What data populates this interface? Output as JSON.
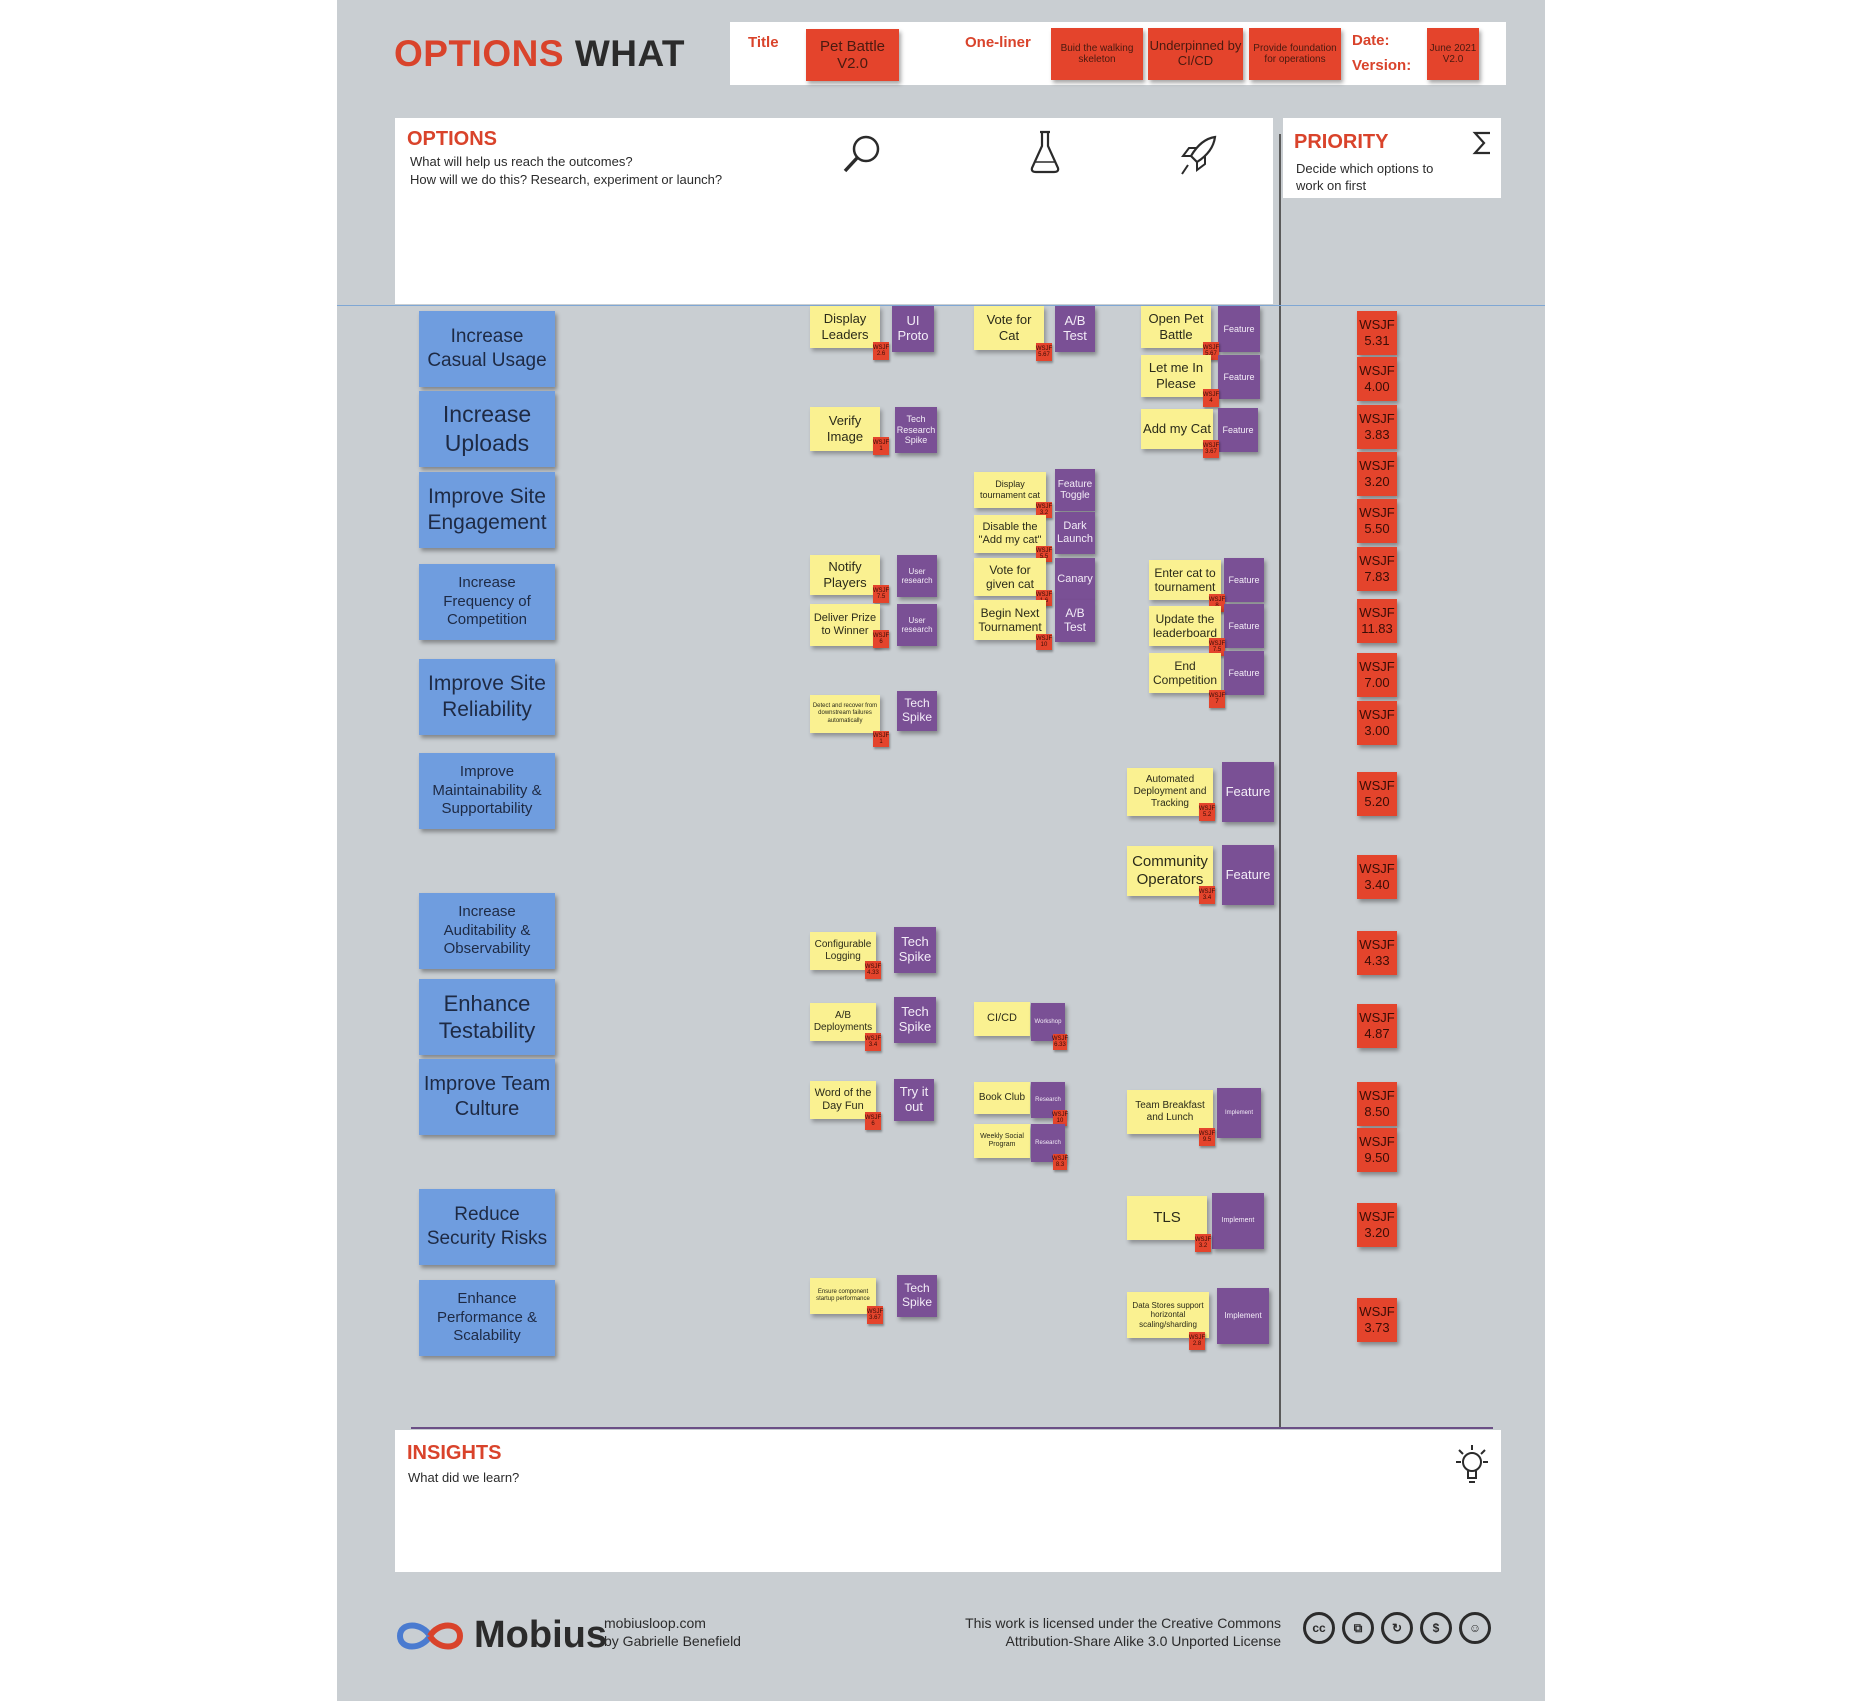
{
  "header": {
    "title_part1": "OPTIONS",
    "title_part2": "WHAT",
    "title_label": "Title",
    "title_value": "Pet Battle V2.0",
    "oneliner_label": "One-liner",
    "oneliner_notes": [
      "Buid the walking skeleton",
      "Underpinned by CI/CD",
      "Provide foundation for operations"
    ],
    "date_label": "Date:",
    "version_label": "Version:",
    "date_version_value": "June 2021 V2.0"
  },
  "options": {
    "heading": "OPTIONS",
    "subtitle_line1": "What will help us reach the outcomes?",
    "subtitle_line2": "How will we do this? Research, experiment or launch?",
    "icons": [
      "magnifier-icon",
      "flask-icon",
      "rocket-icon"
    ]
  },
  "priority": {
    "heading": "PRIORITY",
    "subtitle_line1": "Decide which options to",
    "subtitle_line2": "work on first",
    "icon": "sigma-icon",
    "wsjf_label": "WSJF",
    "scores": [
      "5.31",
      "4.00",
      "3.83",
      "3.20",
      "5.50",
      "7.83",
      "11.83",
      "7.00",
      "3.00",
      "5.20",
      "3.40",
      "4.33",
      "4.87",
      "8.50",
      "9.50",
      "3.20",
      "3.73"
    ]
  },
  "outcomes": [
    "Increase Casual Usage",
    "Increase Uploads",
    "Improve Site Engagement",
    "Increase Frequency of Competition",
    "Improve Site Reliability",
    "Improve Maintainability & Supportability",
    "Increase Auditability & Observability",
    "Enhance Testability",
    "Improve Team Culture",
    "Reduce Security Risks",
    "Enhance Performance & Scalability"
  ],
  "research_notes": [
    {
      "yellow": "Display Leaders",
      "purple": "UI Proto",
      "wsjf": "WSJF 2.6"
    },
    {
      "yellow": "Verify Image",
      "purple": "Tech Research Spike",
      "wsjf": "WSJF 1"
    },
    {
      "yellow": "Notify Players",
      "purple": "User research",
      "wsjf": "WSJF 7.5"
    },
    {
      "yellow": "Deliver Prize to Winner",
      "purple": "User research",
      "wsjf": "WSJF 6"
    },
    {
      "yellow": "Detect and recover from downstream failures automatically",
      "purple": "Tech Spike",
      "wsjf": "WSJF 1"
    },
    {
      "yellow": "Configurable Logging",
      "purple": "Tech Spike",
      "wsjf": "WSJF 4.33"
    },
    {
      "yellow": "A/B Deployments",
      "purple": "Tech Spike",
      "wsjf": "WSJF 3.4"
    },
    {
      "yellow": "Word of the Day Fun",
      "purple": "Try it out",
      "wsjf": "WSJF 6"
    },
    {
      "yellow": "Ensure component startup performance",
      "purple": "Tech Spike",
      "wsjf": "WSJF 3.67"
    }
  ],
  "experiment_notes": [
    {
      "yellow": "Vote for Cat",
      "purple": "A/B Test",
      "wsjf": "WSJF 5.67"
    },
    {
      "yellow": "Display tournament cat",
      "purple": "Feature Toggle",
      "wsjf": "WSJF 3.2"
    },
    {
      "yellow": "Disable the \"Add my cat\"",
      "purple": "Dark Launch",
      "wsjf": "WSJF 5.5"
    },
    {
      "yellow": "Vote for given cat",
      "purple": "Canary",
      "wsjf": "WSJF 1.6"
    },
    {
      "yellow": "Begin Next Tournament",
      "purple": "A/B Test",
      "wsjf": "WSJF 10"
    },
    {
      "yellow": "CI/CD",
      "purple": "Workshop",
      "wsjf": "WSJF 6.33"
    },
    {
      "yellow": "Book Club",
      "purple": "Research",
      "wsjf": "WSJF 10"
    },
    {
      "yellow": "Weekly Social Program",
      "purple": "Research",
      "wsjf": "WSJF 8.3"
    }
  ],
  "launch_notes": [
    {
      "yellow": "Open Pet Battle",
      "purple": "Feature",
      "wsjf": "WSJF 5.67"
    },
    {
      "yellow": "Let me In Please",
      "purple": "Feature",
      "wsjf": "WSJF 4"
    },
    {
      "yellow": "Add my Cat",
      "purple": "Feature",
      "wsjf": "WSJF 3.67"
    },
    {
      "yellow": "Enter cat to tournament",
      "purple": "Feature",
      "wsjf": "WSJF 8"
    },
    {
      "yellow": "Update the leaderboard",
      "purple": "Feature",
      "wsjf": "WSJF 7.5"
    },
    {
      "yellow": "End Competition",
      "purple": "Feature",
      "wsjf": "WSJF 7"
    },
    {
      "yellow": "Automated Deployment and Tracking",
      "purple": "Feature",
      "wsjf": "WSJF 5.2"
    },
    {
      "yellow": "Community Operators",
      "purple": "Feature",
      "wsjf": "WSJF 3.4"
    },
    {
      "yellow": "Team Breakfast and Lunch",
      "purple": "Implement",
      "wsjf": "WSJF 9.5"
    },
    {
      "yellow": "TLS",
      "purple": "Implement",
      "wsjf": "WSJF 3.2"
    },
    {
      "yellow": "Data Stores support horizontal scaling/sharding",
      "purple": "Implement",
      "wsjf": "WSJF 2.8"
    }
  ],
  "insights": {
    "heading": "INSIGHTS",
    "subtitle": "What did we learn?",
    "icon": "lightbulb-icon"
  },
  "footer": {
    "brand": "Mobius",
    "site": "mobiusloop.com",
    "author": "by Gabrielle Benefield",
    "license_line1": "This work is licensed under the Creative Commons",
    "license_line2": "Attribution-Share Alike 3.0 Unported License",
    "license_icons": [
      "cc",
      "copy",
      "remix",
      "noncommercial",
      "attribution"
    ]
  },
  "colors": {
    "accent_red": "#d9432b",
    "sticky_blue": "#6f9ddf",
    "sticky_yellow": "#faf191",
    "sticky_purple": "#7a5095",
    "background_grey": "#c9ced2"
  }
}
